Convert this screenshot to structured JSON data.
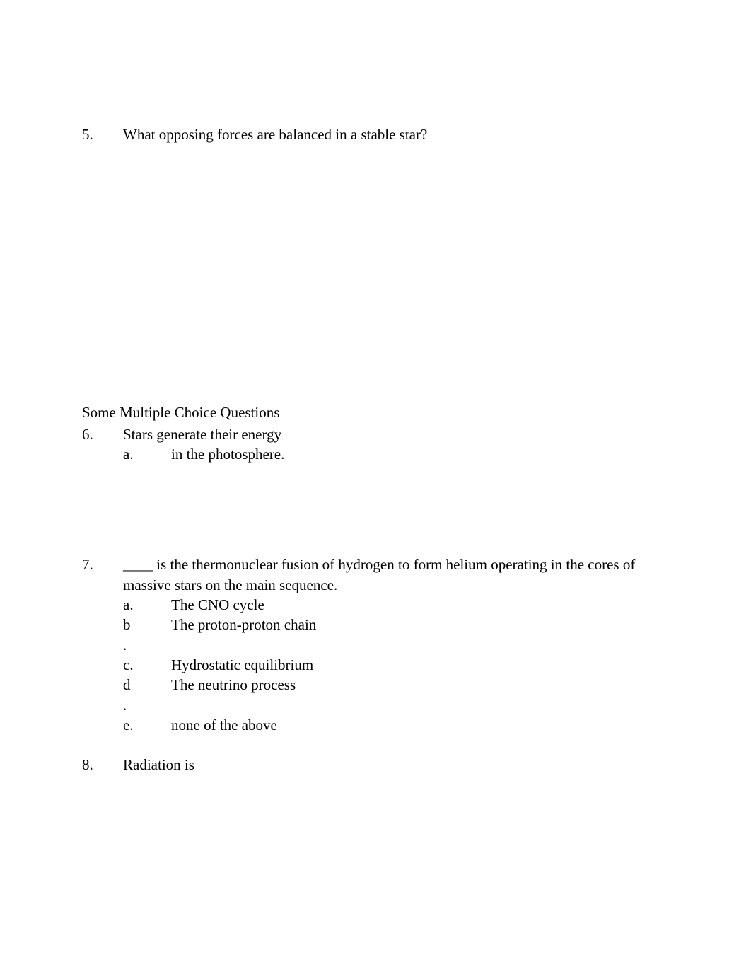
{
  "q5": {
    "number": "5.",
    "text": "What opposing forces are balanced in a stable star?"
  },
  "section_heading": "Some Multiple Choice Questions",
  "q6": {
    "number": "6.",
    "text": "Stars generate their energy",
    "options": {
      "a": {
        "letter": "a.",
        "text": "in the photosphere."
      }
    }
  },
  "q7": {
    "number": " 7.",
    "text": "____ is the thermonuclear fusion of hydrogen to form helium operating in the cores of",
    "text_line2": "massive stars on the main sequence.",
    "options": {
      "a": {
        "letter": "a.",
        "text": "The CNO cycle"
      },
      "b": {
        "letter": "b",
        "text": "The proton-proton chain"
      },
      "b_dot": {
        "letter": ".",
        "text": ""
      },
      "c": {
        "letter": "c.",
        "text": "Hydrostatic equilibrium"
      },
      "d": {
        "letter": "d",
        "text": "The neutrino process"
      },
      "d_dot": {
        "letter": ".",
        "text": ""
      },
      "e": {
        "letter": "e.",
        "text": "none of the above"
      }
    }
  },
  "q8": {
    "number": "8.",
    "text": "Radiation is"
  }
}
